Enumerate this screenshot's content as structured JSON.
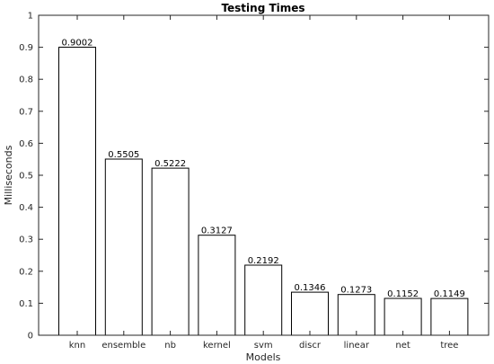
{
  "chart_data": {
    "type": "bar",
    "title": "Testing Times",
    "xlabel": "Models",
    "ylabel": "Milliseconds",
    "categories": [
      "knn",
      "ensemble",
      "nb",
      "kernel",
      "svm",
      "discr",
      "linear",
      "net",
      "tree"
    ],
    "values": [
      0.9002,
      0.5505,
      0.5222,
      0.3127,
      0.2192,
      0.1346,
      0.1273,
      0.1152,
      0.1149
    ],
    "data_labels": [
      "0.9002",
      "0.5505",
      "0.5222",
      "0.3127",
      "0.2192",
      "0.1346",
      "0.1273",
      "0.1152",
      "0.1149"
    ],
    "ylim": [
      0,
      1
    ],
    "yticks": [
      0,
      0.1,
      0.2,
      0.3,
      0.4,
      0.5,
      0.6,
      0.7,
      0.8,
      0.9,
      1
    ],
    "ytick_labels": [
      "0",
      "0.1",
      "0.2",
      "0.3",
      "0.4",
      "0.5",
      "0.6",
      "0.7",
      "0.8",
      "0.9",
      "1"
    ],
    "grid": false,
    "legend": "none",
    "colors": {
      "bar_fill": "#ffffff",
      "bar_edge": "#000000",
      "axis": "#262626"
    }
  }
}
